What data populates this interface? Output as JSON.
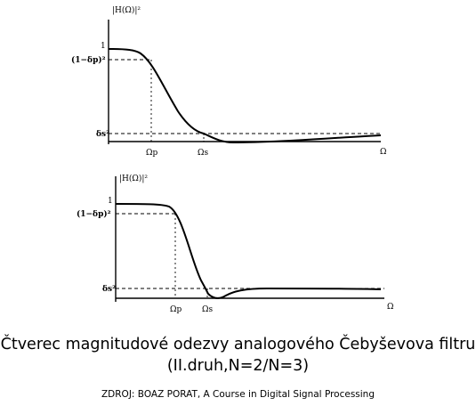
{
  "figure": {
    "caption_line1": "Čtverec magnitudové odezvy analogového Čebyševova filtru",
    "caption_line2": "(II.druh,N=2/N=3)",
    "source": "ZDROJ: BOAZ PORAT, A Course in Digital Signal Processing"
  },
  "plots": [
    {
      "id": "top",
      "ylabel": "|H(Ω)|²",
      "ytick_one": "1",
      "ytick_pass": "(1−δp)²",
      "ytick_stop": "δs²",
      "xtick_pass": "Ωp",
      "xtick_stop": "Ωs",
      "xlabel": "Ω"
    },
    {
      "id": "bottom",
      "ylabel": "|H(Ω)|²",
      "ytick_one": "1",
      "ytick_pass": "(1−δp)²",
      "ytick_stop": "δs²",
      "xtick_pass": "Ωp",
      "xtick_stop": "Ωs",
      "xlabel": "Ω"
    }
  ]
}
